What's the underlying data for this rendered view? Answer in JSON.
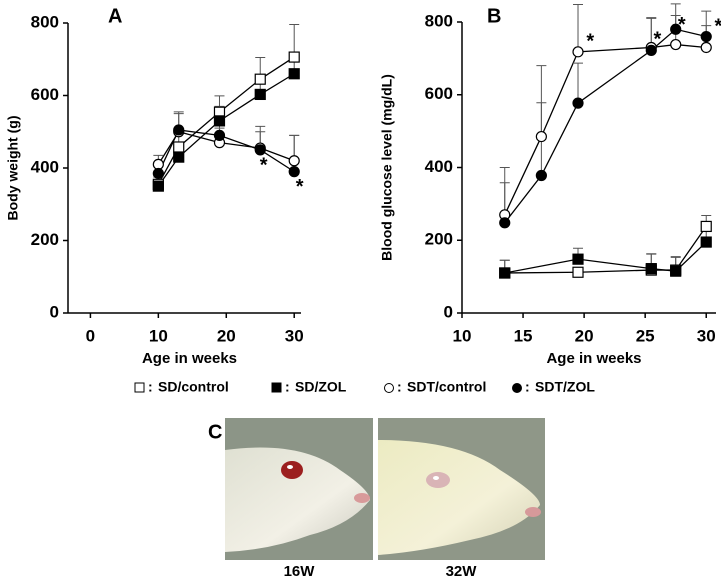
{
  "chart_data": [
    {
      "type": "line",
      "panel_label": "A",
      "x_label": "Age in weeks",
      "y_label": "Body weight (g)",
      "xlim": [
        -3.3,
        31
      ],
      "xticks": [
        0,
        10,
        20,
        30
      ],
      "ylim": [
        0,
        800
      ],
      "yticks": [
        0,
        200,
        400,
        600,
        800
      ],
      "x": [
        10,
        13,
        19,
        25,
        30
      ],
      "series": [
        {
          "name": "SD/control",
          "color": "#000000",
          "marker": "square",
          "filled": false,
          "values": [
            355,
            458,
            554,
            645,
            706
          ],
          "errors": [
            30,
            50,
            45,
            60,
            90
          ]
        },
        {
          "name": "SD/ZOL",
          "color": "#000000",
          "marker": "square",
          "filled": true,
          "values": [
            350,
            430,
            530,
            603,
            660
          ],
          "errors": [
            25,
            40,
            40,
            50,
            60
          ]
        },
        {
          "name": "SDT/control",
          "color": "#000000",
          "marker": "circle",
          "filled": false,
          "values": [
            410,
            500,
            470,
            455,
            420
          ],
          "errors": [
            25,
            55,
            40,
            60,
            70
          ]
        },
        {
          "name": "SDT/ZOL",
          "color": "#000000",
          "marker": "circle",
          "filled": true,
          "values": [
            385,
            505,
            490,
            450,
            390
          ],
          "errors": [
            20,
            45,
            35,
            50,
            100
          ]
        }
      ],
      "legend_separator": ":",
      "annotations": [
        {
          "text": "*",
          "x": 25.5,
          "y": 405
        },
        {
          "text": "*",
          "x": 30.8,
          "y": 345
        }
      ]
    },
    {
      "type": "line",
      "panel_label": "B",
      "x_label": "Age in weeks",
      "y_label": "Blood glucose level (mg/dL)",
      "xlim": [
        10,
        30.8
      ],
      "xticks": [
        10,
        15,
        20,
        25,
        30
      ],
      "ylim": [
        0,
        800
      ],
      "yticks": [
        0,
        200,
        400,
        600,
        800
      ],
      "series": [
        {
          "color": "#000000",
          "marker": "square",
          "filled": false,
          "x": [
            13.5,
            19.5,
            25.5,
            27.5,
            30
          ],
          "values": [
            110,
            112,
            118,
            118,
            238
          ],
          "errors": [
            35,
            0,
            45,
            35,
            30
          ]
        },
        {
          "color": "#000000",
          "marker": "square",
          "filled": true,
          "x": [
            13.5,
            19.5,
            25.5,
            27.5,
            30
          ],
          "values": [
            110,
            148,
            122,
            115,
            195
          ],
          "errors": [
            35,
            30,
            40,
            40,
            30
          ]
        },
        {
          "color": "#000000",
          "marker": "circle",
          "filled": false,
          "x": [
            13.5,
            16.5,
            19.5,
            25.5,
            27.5,
            30
          ],
          "values": [
            270,
            485,
            718,
            730,
            738,
            730
          ],
          "errors": [
            130,
            195,
            130,
            80,
            80,
            60
          ]
        },
        {
          "color": "#000000",
          "marker": "circle",
          "filled": true,
          "x": [
            13.5,
            16.5,
            19.5,
            25.5,
            27.5,
            30
          ],
          "values": [
            248,
            378,
            577,
            722,
            780,
            760
          ],
          "errors": [
            110,
            200,
            110,
            90,
            70,
            70
          ]
        }
      ],
      "annotations": [
        {
          "text": "*",
          "x": 20.5,
          "y": 745
        },
        {
          "text": "*",
          "x": 26,
          "y": 750
        },
        {
          "text": "*",
          "x": 28,
          "y": 790
        },
        {
          "text": "*",
          "x": 31,
          "y": 785
        }
      ]
    }
  ],
  "panel_c": {
    "label": "C",
    "captions": [
      "16W",
      "32W"
    ]
  }
}
